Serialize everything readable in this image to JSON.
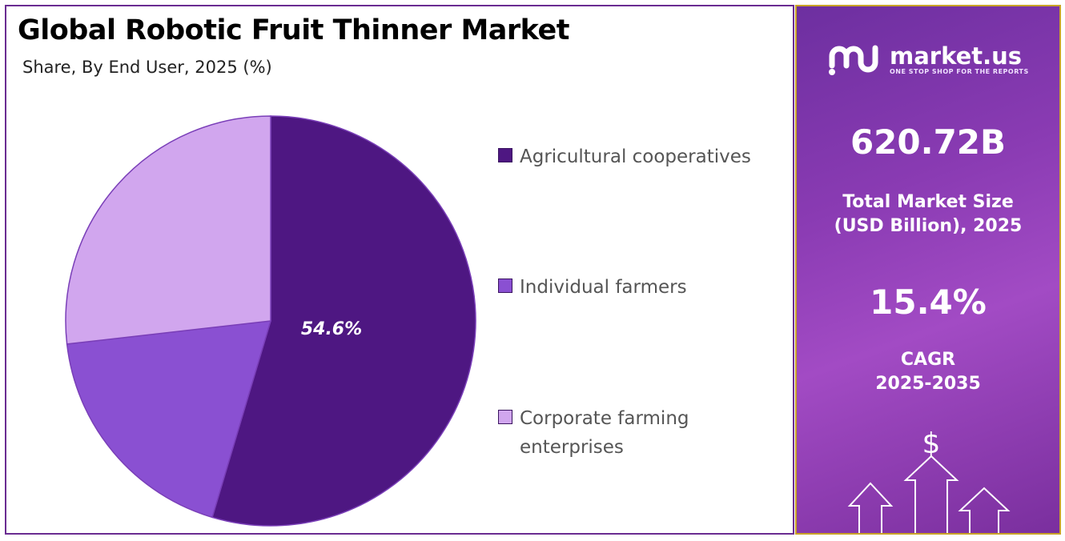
{
  "header": {
    "title": "Global Robotic Fruit Thinner Market",
    "subtitle": "Share, By End User, 2025 (%)"
  },
  "chart_data": {
    "type": "pie",
    "categories": [
      "Agricultural cooperatives",
      "Individual farmers",
      "Corporate farming enterprises"
    ],
    "values": [
      54.6,
      18.6,
      26.8
    ],
    "labels": [
      "54.6%",
      "",
      ""
    ],
    "colors": [
      "#4e1782",
      "#8a50d2",
      "#d1a6ee"
    ],
    "legend_position": "right"
  },
  "legend": {
    "items": [
      {
        "label_line1": "Agricultural cooperatives",
        "label_line2": ""
      },
      {
        "label_line1": "Individual farmers",
        "label_line2": ""
      },
      {
        "label_line1": "Corporate farming",
        "label_line2": "enterprises"
      }
    ]
  },
  "sidebar": {
    "brand_name": "market.us",
    "brand_tagline": "ONE STOP SHOP FOR THE REPORTS",
    "market_size_value": "620.72B",
    "market_size_label_line1": "Total Market Size",
    "market_size_label_line2": "(USD Billion), 2025",
    "cagr_value": "15.4%",
    "cagr_label_line1": "CAGR",
    "cagr_label_line2": "2025-2035",
    "dollar_symbol": "$"
  }
}
